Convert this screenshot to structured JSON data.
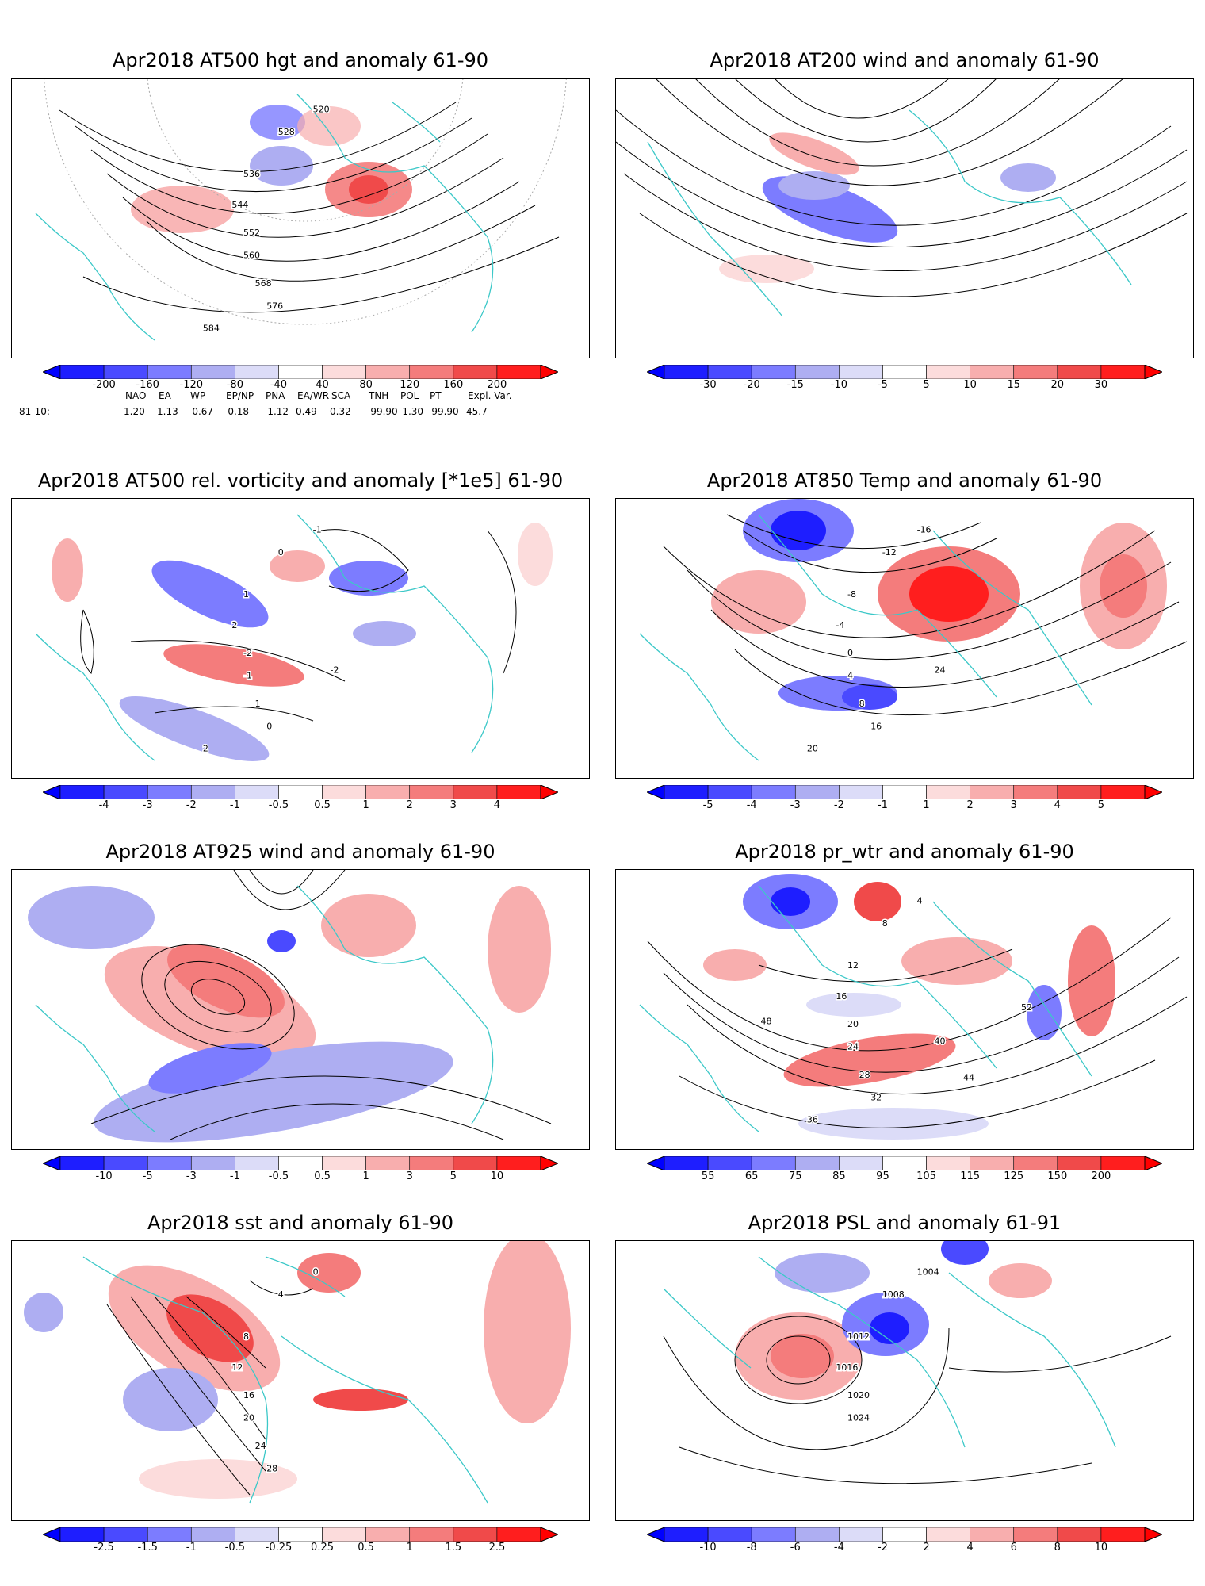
{
  "panels": [
    {
      "title": "Apr2018 AT500 hgt and anomaly 61-90",
      "colorbar": [
        "-200",
        "-160",
        "-120",
        "-80",
        "-40",
        "40",
        "80",
        "120",
        "160",
        "200"
      ],
      "contour_labels": [
        "520",
        "528",
        "536",
        "544",
        "552",
        "560",
        "568",
        "576",
        "584"
      ]
    },
    {
      "title": "Apr2018 AT200 wind and anomaly 61-90",
      "colorbar": [
        "-30",
        "-20",
        "-15",
        "-10",
        "-5",
        "5",
        "10",
        "15",
        "20",
        "30"
      ],
      "contour_labels": []
    },
    {
      "title": "Apr2018 AT500 rel. vorticity and anomaly [*1e5] 61-90",
      "colorbar": [
        "-4",
        "-3",
        "-2",
        "-1",
        "-0.5",
        "0.5",
        "1",
        "2",
        "3",
        "4"
      ],
      "contour_labels": [
        "-1",
        "0",
        "1",
        "2",
        "-2",
        "-1",
        "1",
        "0",
        "2",
        "-2"
      ]
    },
    {
      "title": "Apr2018 AT850 Temp and anomaly 61-90",
      "colorbar": [
        "-5",
        "-4",
        "-3",
        "-2",
        "-1",
        "1",
        "2",
        "3",
        "4",
        "5"
      ],
      "contour_labels": [
        "-16",
        "-12",
        "-8",
        "-4",
        "0",
        "4",
        "8",
        "16",
        "20",
        "24"
      ]
    },
    {
      "title": "Apr2018 AT925 wind and anomaly 61-90",
      "colorbar": [
        "-10",
        "-5",
        "-3",
        "-1",
        "-0.5",
        "0.5",
        "1",
        "3",
        "5",
        "10"
      ],
      "contour_labels": []
    },
    {
      "title": "Apr2018 pr_wtr and anomaly 61-90",
      "colorbar": [
        "55",
        "65",
        "75",
        "85",
        "95",
        "105",
        "115",
        "125",
        "150",
        "200"
      ],
      "contour_labels": [
        "4",
        "8",
        "12",
        "16",
        "20",
        "24",
        "28",
        "32",
        "36",
        "40",
        "44",
        "48",
        "52"
      ]
    },
    {
      "title": "Apr2018 sst and anomaly 61-90",
      "colorbar": [
        "-2.5",
        "-1.5",
        "-1",
        "-0.5",
        "-0.25",
        "0.25",
        "0.5",
        "1",
        "1.5",
        "2.5"
      ],
      "contour_labels": [
        "0",
        "4",
        "8",
        "12",
        "16",
        "20",
        "24",
        "28"
      ]
    },
    {
      "title": "Apr2018 PSL and anomaly 61-91",
      "colorbar": [
        "-10",
        "-8",
        "-6",
        "-4",
        "-2",
        "2",
        "4",
        "6",
        "8",
        "10"
      ],
      "contour_labels": [
        "1004",
        "1008",
        "1012",
        "1016",
        "1020",
        "1024"
      ]
    }
  ],
  "teleconnections": {
    "header": [
      "NAO",
      "EA",
      "WP",
      "EP/NP",
      "PNA",
      "EA/WR",
      "SCA",
      "TNH",
      "POL",
      "PT",
      "Expl. Var."
    ],
    "row_label": "81-10:",
    "values": [
      "1.20",
      "1.13",
      "-0.67",
      "-0.18",
      "-1.12",
      "0.49",
      "0.32",
      "-99.90",
      "-1.30",
      "-99.90",
      "45.7"
    ]
  },
  "colors": {
    "blues": [
      "#1e1eff",
      "#4a4aff",
      "#7c7cff",
      "#aeaef2",
      "#dcdcf8"
    ],
    "reds": [
      "#fcdcdc",
      "#f8aeae",
      "#f47c7c",
      "#f04a4a",
      "#ff1e1e"
    ],
    "coast": "#3cc8c8"
  }
}
